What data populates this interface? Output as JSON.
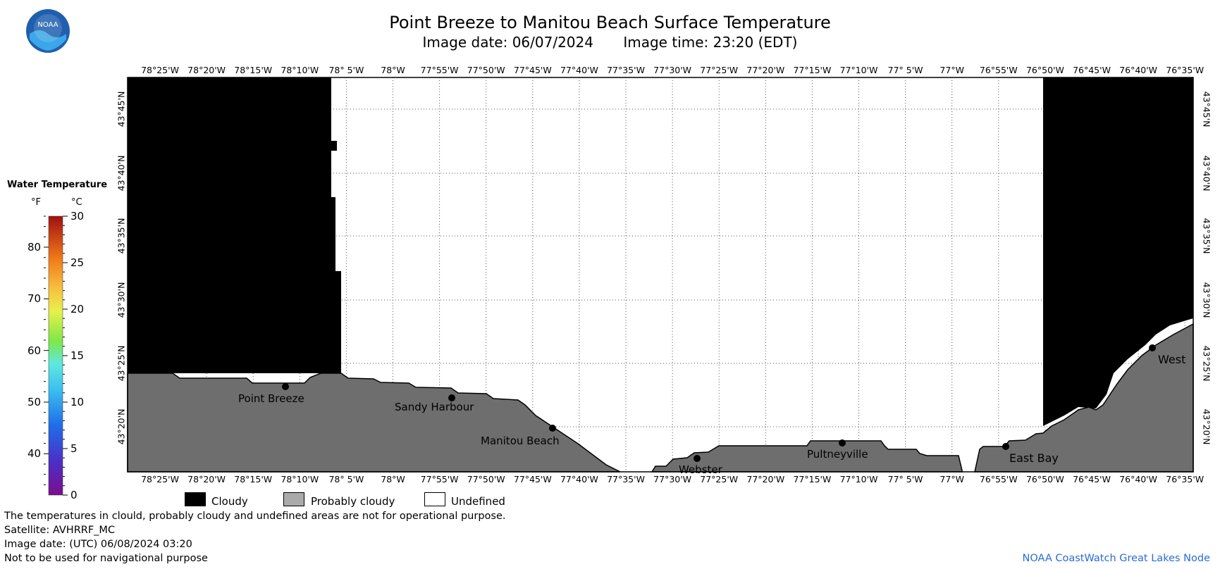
{
  "title": "Point Breeze to Manitou Beach Surface Temperature",
  "image_date_label": "Image date: 06/07/2024",
  "image_time_label": "Image time: 23:20 (EDT)",
  "logo_text": "NOAA",
  "longitude_labels": [
    "78°25'W",
    "78°20'W",
    "78°15'W",
    "78°10'W",
    "78° 5'W",
    "78°W",
    "77°55'W",
    "77°50'W",
    "77°45'W",
    "77°40'W",
    "77°35'W",
    "77°30'W",
    "77°25'W",
    "77°20'W",
    "77°15'W",
    "77°10'W",
    "77° 5'W",
    "77°W",
    "76°55'W",
    "76°50'W",
    "76°45'W",
    "76°40'W",
    "76°35'W"
  ],
  "latitude_labels": [
    "43°45'N",
    "43°40'N",
    "43°35'N",
    "43°30'N",
    "43°25'N",
    "43°20'N"
  ],
  "places": [
    {
      "name": "Point Breeze"
    },
    {
      "name": "Sandy Harbour"
    },
    {
      "name": "Manitou Beach"
    },
    {
      "name": "Webster"
    },
    {
      "name": "Pultneyville"
    },
    {
      "name": "East Bay"
    },
    {
      "name": "West"
    }
  ],
  "legend": {
    "title": "Water Temperature",
    "unit_f": "°F",
    "unit_c": "°C",
    "f_ticks": [
      "80",
      "70",
      "60",
      "50",
      "40"
    ],
    "c_ticks": [
      "30",
      "25",
      "20",
      "15",
      "10",
      "5",
      "0"
    ]
  },
  "key": {
    "cloudy": "Cloudy",
    "probably_cloudy": "Probably cloudy",
    "undefined": "Undefined",
    "cloudy_color": "#000000",
    "probably_cloudy_color": "#6e6e6e",
    "undefined_color": "#ffffff"
  },
  "footer": {
    "disclaimer": "The temperatures in clould, probably cloudy and undefined areas are not for operational purpose.",
    "satellite": "Satellite: AVHRRF_MC",
    "utc_date": "Image date: (UTC) 06/08/2024  03:20",
    "navigation": "Not to be used for navigational purpose",
    "credit": "NOAA CoastWatch Great Lakes Node"
  }
}
